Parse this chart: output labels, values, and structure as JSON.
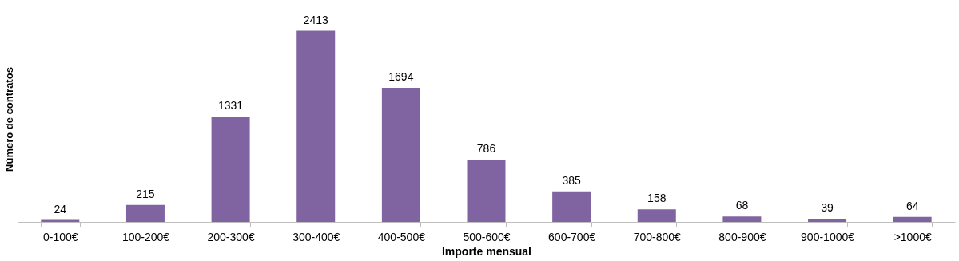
{
  "chart_data": {
    "type": "bar",
    "xlabel": "Importe mensual",
    "ylabel": "Número de contratos",
    "categories": [
      "0-100€",
      "100-200€",
      "200-300€",
      "300-400€",
      "400-500€",
      "500-600€",
      "600-700€",
      "700-800€",
      "800-900€",
      "900-1000€",
      ">1000€"
    ],
    "values": [
      24,
      215,
      1331,
      2413,
      1694,
      786,
      385,
      158,
      68,
      39,
      64
    ],
    "color": "#8064a2",
    "data_labels": true,
    "grid": false,
    "tick_labels": "x"
  }
}
